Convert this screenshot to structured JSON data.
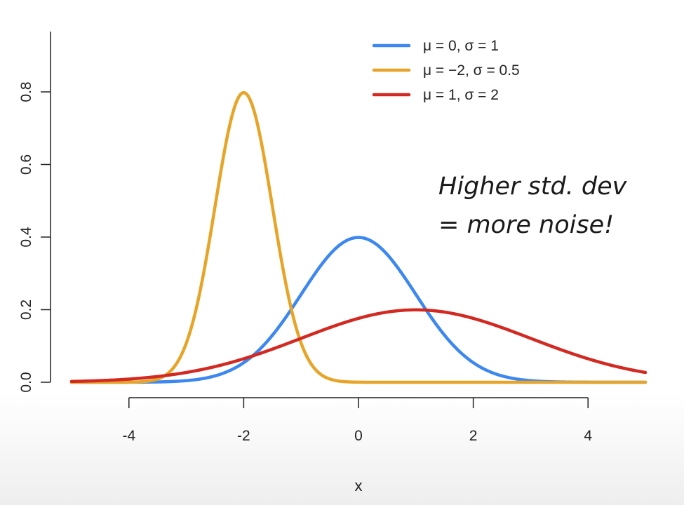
{
  "chart_data": {
    "type": "line",
    "xlabel": "x",
    "ylabel": "",
    "xlim": [
      -5,
      5
    ],
    "ylim": [
      0,
      0.8
    ],
    "x_ticks": [
      -4,
      -2,
      0,
      2,
      4
    ],
    "x_tick_labels": [
      "-4",
      "-2",
      "0",
      "2",
      "4"
    ],
    "y_ticks": [
      0,
      0.2,
      0.4,
      0.6,
      0.8
    ],
    "y_tick_labels": [
      "0.0",
      "0.2",
      "0.4",
      "0.6",
      "0.8"
    ],
    "grid": false,
    "legend_position": "top-right",
    "series": [
      {
        "name": "μ = 0, σ = 1",
        "mu": 0,
        "sigma": 1,
        "color": "#3d87f0"
      },
      {
        "name": "μ = −2, σ = 0.5",
        "mu": -2,
        "sigma": 0.5,
        "color": "#e6a528"
      },
      {
        "name": "μ = 1, σ = 2",
        "mu": 1,
        "sigma": 2,
        "color": "#d22a22"
      }
    ],
    "annotation": {
      "lines": [
        "Higher std. dev",
        "= more noise!"
      ]
    }
  }
}
